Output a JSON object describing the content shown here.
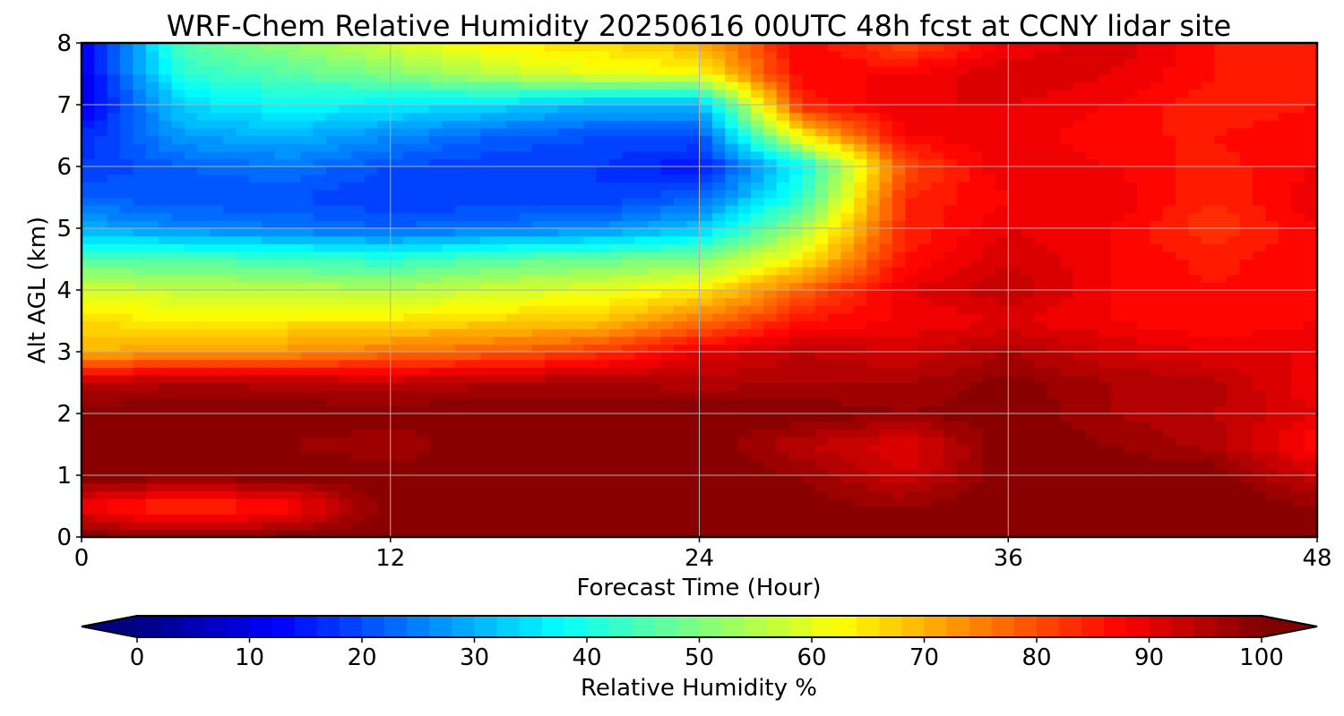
{
  "chart_data": {
    "type": "heatmap",
    "title": "WRF-Chem Relative Humidity 20250616 00UTC 48h fcst at CCNY lidar site",
    "xlabel": "Forecast Time (Hour)",
    "ylabel": "Alt AGL (km)",
    "xlim": [
      0,
      48
    ],
    "ylim": [
      0,
      8
    ],
    "x_ticks": [
      0,
      12,
      24,
      36,
      48
    ],
    "y_ticks": [
      0,
      1,
      2,
      3,
      4,
      5,
      6,
      7,
      8
    ],
    "grid": true,
    "colormap": "jet",
    "x": [
      0,
      4,
      8,
      12,
      16,
      20,
      24,
      28,
      32,
      36,
      40,
      44,
      48
    ],
    "y": [
      0,
      0.5,
      1,
      1.5,
      2,
      2.5,
      3,
      3.5,
      4,
      4.5,
      5,
      5.5,
      6,
      6.5,
      7,
      7.5,
      8
    ],
    "values": [
      [
        100,
        98,
        100,
        100,
        100,
        100,
        100,
        100,
        100,
        100,
        100,
        100,
        100
      ],
      [
        88,
        82,
        86,
        100,
        100,
        100,
        100,
        99,
        98,
        100,
        100,
        100,
        98
      ],
      [
        100,
        100,
        100,
        100,
        100,
        100,
        100,
        98,
        92,
        100,
        100,
        100,
        92
      ],
      [
        100,
        100,
        98,
        96,
        100,
        100,
        100,
        94,
        90,
        100,
        98,
        95,
        86
      ],
      [
        100,
        100,
        100,
        100,
        100,
        100,
        100,
        100,
        98,
        100,
        96,
        94,
        90
      ],
      [
        94,
        96,
        95,
        94,
        96,
        96,
        95,
        96,
        96,
        99,
        96,
        95,
        88
      ],
      [
        70,
        72,
        73,
        76,
        78,
        82,
        90,
        94,
        92,
        96,
        92,
        90,
        90
      ],
      [
        66,
        64,
        65,
        65,
        67,
        68,
        76,
        86,
        88,
        90,
        88,
        86,
        88
      ],
      [
        58,
        57,
        56,
        55,
        58,
        60,
        64,
        78,
        90,
        94,
        88,
        86,
        88
      ],
      [
        46,
        45,
        44,
        42,
        46,
        48,
        50,
        64,
        86,
        92,
        88,
        85,
        88
      ],
      [
        30,
        26,
        24,
        22,
        24,
        26,
        32,
        54,
        84,
        90,
        88,
        82,
        88
      ],
      [
        22,
        20,
        20,
        18,
        18,
        18,
        22,
        42,
        84,
        88,
        90,
        84,
        90
      ],
      [
        18,
        22,
        24,
        20,
        18,
        18,
        14,
        38,
        80,
        90,
        88,
        85,
        88
      ],
      [
        16,
        28,
        30,
        26,
        22,
        20,
        20,
        64,
        88,
        90,
        86,
        86,
        88
      ],
      [
        10,
        34,
        38,
        36,
        34,
        30,
        30,
        84,
        90,
        90,
        88,
        84,
        86
      ],
      [
        10,
        42,
        46,
        50,
        56,
        60,
        62,
        88,
        88,
        92,
        90,
        86,
        86
      ],
      [
        10,
        46,
        52,
        58,
        64,
        66,
        70,
        88,
        80,
        88,
        92,
        86,
        84
      ]
    ]
  },
  "colorbar": {
    "label": "Relative Humidity %",
    "ticks": [
      "0",
      "10",
      "20",
      "30",
      "40",
      "50",
      "60",
      "70",
      "80",
      "90",
      "100"
    ],
    "min": 0,
    "max": 100,
    "levels": 50,
    "extend": "both",
    "orientation": "horizontal"
  }
}
